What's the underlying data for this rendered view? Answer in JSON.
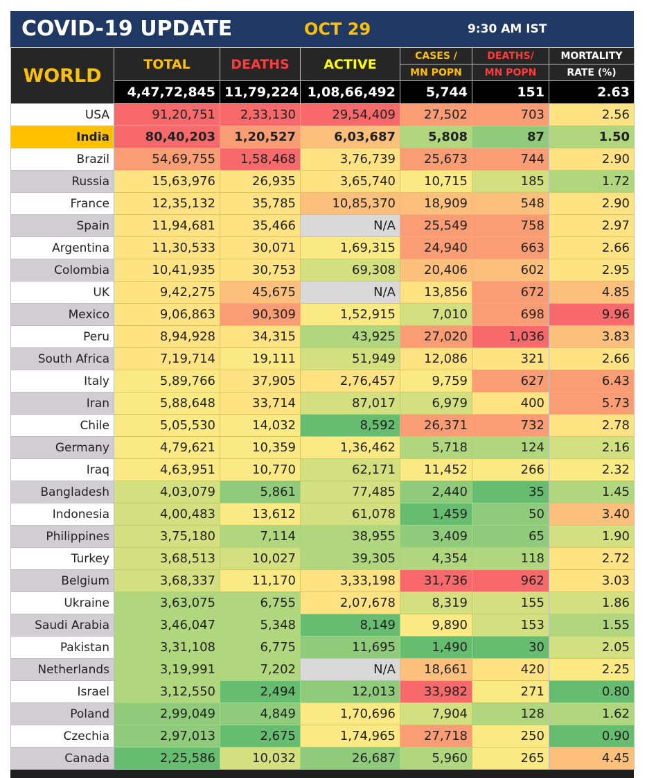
{
  "header": {
    "title": "COVID-19 UPDATE",
    "date": "OCT 29",
    "time": "9:30 AM IST"
  },
  "columns": {
    "world": "WORLD",
    "total": "TOTAL",
    "deaths": "DEATHS",
    "active": "ACTIVE",
    "cases_mn_top": "CASES /",
    "cases_mn_bottom": "MN POPN",
    "deaths_mn_top": "DEATHS/",
    "deaths_mn_bottom": "MN POPN",
    "mortality_top": "MORTALITY",
    "mortality_bottom": "RATE (%)"
  },
  "world": {
    "total": "4,47,72,845",
    "deaths": "11,79,224",
    "active": "1,08,66,492",
    "cases_per_mn": "5,744",
    "deaths_per_mn": "151",
    "mortality": "2.63"
  },
  "palette": {
    "red": "#f8696b",
    "orange": "#fa9d75",
    "lightorange": "#fdc07c",
    "yellow": "#ffe383",
    "lightyellow": "#fbea84",
    "yellowgreen": "#d3e07f",
    "lightgreen": "#b0d77d",
    "green": "#8fcb7b",
    "darkgreen": "#67bd6f",
    "na": "#d9d9d9",
    "white": "#ffffff",
    "gray": "#d0ced3",
    "india": "#ffc000"
  },
  "rows": [
    {
      "country": "USA",
      "total": "91,20,751",
      "deaths": "2,33,130",
      "active": "29,54,409",
      "cases_per_mn": "27,502",
      "deaths_per_mn": "703",
      "mortality": "2.56",
      "colors": [
        "red",
        "red",
        "red",
        "orange",
        "orange",
        "yellow"
      ]
    },
    {
      "country": "India",
      "total": "80,40,203",
      "deaths": "1,20,527",
      "active": "6,03,687",
      "cases_per_mn": "5,808",
      "deaths_per_mn": "87",
      "mortality": "1.50",
      "colors": [
        "red",
        "orange",
        "lightorange",
        "lightgreen",
        "green",
        "lightgreen"
      ]
    },
    {
      "country": "Brazil",
      "total": "54,69,755",
      "deaths": "1,58,468",
      "active": "3,76,739",
      "cases_per_mn": "25,673",
      "deaths_per_mn": "744",
      "mortality": "2.90",
      "colors": [
        "orange",
        "red",
        "yellow",
        "orange",
        "orange",
        "yellow"
      ]
    },
    {
      "country": "Russia",
      "total": "15,63,976",
      "deaths": "26,935",
      "active": "3,65,740",
      "cases_per_mn": "10,715",
      "deaths_per_mn": "185",
      "mortality": "1.72",
      "colors": [
        "yellow",
        "yellow",
        "yellow",
        "lightyellow",
        "yellowgreen",
        "lightgreen"
      ]
    },
    {
      "country": "France",
      "total": "12,35,132",
      "deaths": "35,785",
      "active": "10,85,370",
      "cases_per_mn": "18,909",
      "deaths_per_mn": "548",
      "mortality": "2.90",
      "colors": [
        "yellow",
        "yellow",
        "lightorange",
        "lightorange",
        "lightorange",
        "yellow"
      ]
    },
    {
      "country": "Spain",
      "total": "11,94,681",
      "deaths": "35,466",
      "active": "N/A",
      "cases_per_mn": "25,549",
      "deaths_per_mn": "758",
      "mortality": "2.97",
      "colors": [
        "yellow",
        "yellow",
        "na",
        "orange",
        "orange",
        "yellow"
      ]
    },
    {
      "country": "Argentina",
      "total": "11,30,533",
      "deaths": "30,071",
      "active": "1,69,315",
      "cases_per_mn": "24,940",
      "deaths_per_mn": "663",
      "mortality": "2.66",
      "colors": [
        "yellow",
        "yellow",
        "lightyellow",
        "orange",
        "orange",
        "yellow"
      ]
    },
    {
      "country": "Colombia",
      "total": "10,41,935",
      "deaths": "30,753",
      "active": "69,308",
      "cases_per_mn": "20,406",
      "deaths_per_mn": "602",
      "mortality": "2.95",
      "colors": [
        "yellow",
        "yellow",
        "yellowgreen",
        "lightorange",
        "lightorange",
        "yellow"
      ]
    },
    {
      "country": "UK",
      "total": "9,42,275",
      "deaths": "45,675",
      "active": "N/A",
      "cases_per_mn": "13,856",
      "deaths_per_mn": "672",
      "mortality": "4.85",
      "colors": [
        "yellow",
        "lightorange",
        "na",
        "yellow",
        "orange",
        "lightorange"
      ]
    },
    {
      "country": "Mexico",
      "total": "9,06,863",
      "deaths": "90,309",
      "active": "1,52,915",
      "cases_per_mn": "7,010",
      "deaths_per_mn": "698",
      "mortality": "9.96",
      "colors": [
        "yellow",
        "orange",
        "lightyellow",
        "yellowgreen",
        "orange",
        "red"
      ]
    },
    {
      "country": "Peru",
      "total": "8,94,928",
      "deaths": "34,315",
      "active": "43,925",
      "cases_per_mn": "27,020",
      "deaths_per_mn": "1,036",
      "mortality": "3.83",
      "colors": [
        "yellow",
        "yellow",
        "lightgreen",
        "orange",
        "red",
        "lightorange"
      ]
    },
    {
      "country": "South Africa",
      "total": "7,19,714",
      "deaths": "19,111",
      "active": "51,949",
      "cases_per_mn": "12,086",
      "deaths_per_mn": "321",
      "mortality": "2.66",
      "colors": [
        "yellow",
        "lightyellow",
        "yellowgreen",
        "yellow",
        "yellow",
        "yellow"
      ]
    },
    {
      "country": "Italy",
      "total": "5,89,766",
      "deaths": "37,905",
      "active": "2,76,457",
      "cases_per_mn": "9,759",
      "deaths_per_mn": "627",
      "mortality": "6.43",
      "colors": [
        "lightyellow",
        "yellow",
        "yellow",
        "lightyellow",
        "orange",
        "orange"
      ]
    },
    {
      "country": "Iran",
      "total": "5,88,648",
      "deaths": "33,714",
      "active": "87,017",
      "cases_per_mn": "6,979",
      "deaths_per_mn": "400",
      "mortality": "5.73",
      "colors": [
        "lightyellow",
        "yellow",
        "yellowgreen",
        "yellowgreen",
        "yellow",
        "orange"
      ]
    },
    {
      "country": "Chile",
      "total": "5,05,530",
      "deaths": "14,032",
      "active": "8,592",
      "cases_per_mn": "26,371",
      "deaths_per_mn": "732",
      "mortality": "2.78",
      "colors": [
        "lightyellow",
        "lightyellow",
        "darkgreen",
        "orange",
        "orange",
        "yellow"
      ]
    },
    {
      "country": "Germany",
      "total": "4,79,621",
      "deaths": "10,359",
      "active": "1,36,462",
      "cases_per_mn": "5,718",
      "deaths_per_mn": "124",
      "mortality": "2.16",
      "colors": [
        "lightyellow",
        "lightyellow",
        "lightyellow",
        "lightgreen",
        "lightgreen",
        "yellowgreen"
      ]
    },
    {
      "country": "Iraq",
      "total": "4,63,951",
      "deaths": "10,770",
      "active": "62,171",
      "cases_per_mn": "11,452",
      "deaths_per_mn": "266",
      "mortality": "2.32",
      "colors": [
        "lightyellow",
        "lightyellow",
        "yellowgreen",
        "lightyellow",
        "lightyellow",
        "lightyellow"
      ]
    },
    {
      "country": "Bangladesh",
      "total": "4,03,079",
      "deaths": "5,861",
      "active": "77,485",
      "cases_per_mn": "2,440",
      "deaths_per_mn": "35",
      "mortality": "1.45",
      "colors": [
        "yellowgreen",
        "green",
        "yellowgreen",
        "green",
        "darkgreen",
        "lightgreen"
      ]
    },
    {
      "country": "Indonesia",
      "total": "4,00,483",
      "deaths": "13,612",
      "active": "61,078",
      "cases_per_mn": "1,459",
      "deaths_per_mn": "50",
      "mortality": "3.40",
      "colors": [
        "yellowgreen",
        "lightyellow",
        "yellowgreen",
        "darkgreen",
        "green",
        "lightorange"
      ]
    },
    {
      "country": "Philippines",
      "total": "3,75,180",
      "deaths": "7,114",
      "active": "38,955",
      "cases_per_mn": "3,409",
      "deaths_per_mn": "65",
      "mortality": "1.90",
      "colors": [
        "yellowgreen",
        "lightgreen",
        "lightgreen",
        "green",
        "green",
        "yellowgreen"
      ]
    },
    {
      "country": "Turkey",
      "total": "3,68,513",
      "deaths": "10,027",
      "active": "39,305",
      "cases_per_mn": "4,354",
      "deaths_per_mn": "118",
      "mortality": "2.72",
      "colors": [
        "yellowgreen",
        "yellowgreen",
        "lightgreen",
        "lightgreen",
        "lightgreen",
        "yellow"
      ]
    },
    {
      "country": "Belgium",
      "total": "3,68,337",
      "deaths": "11,170",
      "active": "3,33,198",
      "cases_per_mn": "31,736",
      "deaths_per_mn": "962",
      "mortality": "3.03",
      "colors": [
        "yellowgreen",
        "lightyellow",
        "yellow",
        "red",
        "red",
        "yellow"
      ]
    },
    {
      "country": "Ukraine",
      "total": "3,63,075",
      "deaths": "6,755",
      "active": "2,07,678",
      "cases_per_mn": "8,319",
      "deaths_per_mn": "155",
      "mortality": "1.86",
      "colors": [
        "lightgreen",
        "lightgreen",
        "yellow",
        "yellowgreen",
        "yellowgreen",
        "yellowgreen"
      ]
    },
    {
      "country": "Saudi Arabia",
      "total": "3,46,047",
      "deaths": "5,348",
      "active": "8,149",
      "cases_per_mn": "9,890",
      "deaths_per_mn": "153",
      "mortality": "1.55",
      "colors": [
        "lightgreen",
        "lightgreen",
        "darkgreen",
        "lightyellow",
        "yellowgreen",
        "lightgreen"
      ]
    },
    {
      "country": "Pakistan",
      "total": "3,31,108",
      "deaths": "6,775",
      "active": "11,695",
      "cases_per_mn": "1,490",
      "deaths_per_mn": "30",
      "mortality": "2.05",
      "colors": [
        "lightgreen",
        "lightgreen",
        "green",
        "darkgreen",
        "darkgreen",
        "yellowgreen"
      ]
    },
    {
      "country": "Netherlands",
      "total": "3,19,991",
      "deaths": "7,202",
      "active": "N/A",
      "cases_per_mn": "18,661",
      "deaths_per_mn": "420",
      "mortality": "2.25",
      "colors": [
        "lightgreen",
        "lightgreen",
        "na",
        "lightorange",
        "yellow",
        "lightyellow"
      ]
    },
    {
      "country": "Israel",
      "total": "3,12,550",
      "deaths": "2,494",
      "active": "12,013",
      "cases_per_mn": "33,982",
      "deaths_per_mn": "271",
      "mortality": "0.80",
      "colors": [
        "lightgreen",
        "darkgreen",
        "green",
        "red",
        "lightyellow",
        "darkgreen"
      ]
    },
    {
      "country": "Poland",
      "total": "2,99,049",
      "deaths": "4,849",
      "active": "1,70,696",
      "cases_per_mn": "7,904",
      "deaths_per_mn": "128",
      "mortality": "1.62",
      "colors": [
        "green",
        "green",
        "lightyellow",
        "yellowgreen",
        "lightgreen",
        "lightgreen"
      ]
    },
    {
      "country": "Czechia",
      "total": "2,97,013",
      "deaths": "2,675",
      "active": "1,74,965",
      "cases_per_mn": "27,718",
      "deaths_per_mn": "250",
      "mortality": "0.90",
      "colors": [
        "green",
        "darkgreen",
        "lightyellow",
        "orange",
        "lightyellow",
        "darkgreen"
      ]
    },
    {
      "country": "Canada",
      "total": "2,25,586",
      "deaths": "10,032",
      "active": "26,687",
      "cases_per_mn": "5,960",
      "deaths_per_mn": "265",
      "mortality": "4.45",
      "colors": [
        "darkgreen",
        "yellowgreen",
        "green",
        "lightgreen",
        "lightyellow",
        "lightorange"
      ]
    }
  ]
}
